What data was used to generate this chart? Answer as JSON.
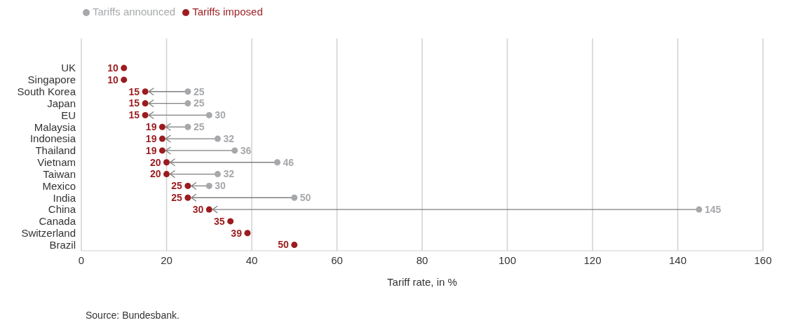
{
  "chart_data": {
    "type": "scatter",
    "orientation": "horizontal",
    "categories": [
      "UK",
      "Singapore",
      "South Korea",
      "Japan",
      "EU",
      "Malaysia",
      "Indonesia",
      "Thailand",
      "Vietnam",
      "Taiwan",
      "Mexico",
      "India",
      "China",
      "Canada",
      "Switzerland",
      "Brazil"
    ],
    "series": [
      {
        "name": "Tariffs imposed",
        "color": "#9b1c1f",
        "values": [
          10,
          10,
          15,
          15,
          15,
          19,
          19,
          19,
          20,
          20,
          25,
          25,
          30,
          35,
          39,
          50
        ]
      },
      {
        "name": "Tariffs announced",
        "color": "#a6a8ab",
        "values": [
          null,
          null,
          25,
          25,
          30,
          25,
          32,
          36,
          46,
          32,
          30,
          50,
          145,
          null,
          null,
          null
        ]
      }
    ],
    "xlim": [
      0,
      160
    ],
    "xticks": [
      0,
      20,
      40,
      60,
      80,
      100,
      120,
      140,
      160
    ],
    "xlabel": "Tariff rate, in %",
    "annotations": [
      "Source: Bundesbank."
    ],
    "grid": "x",
    "legend": "top left",
    "marker": "circle",
    "data_labels": true
  }
}
